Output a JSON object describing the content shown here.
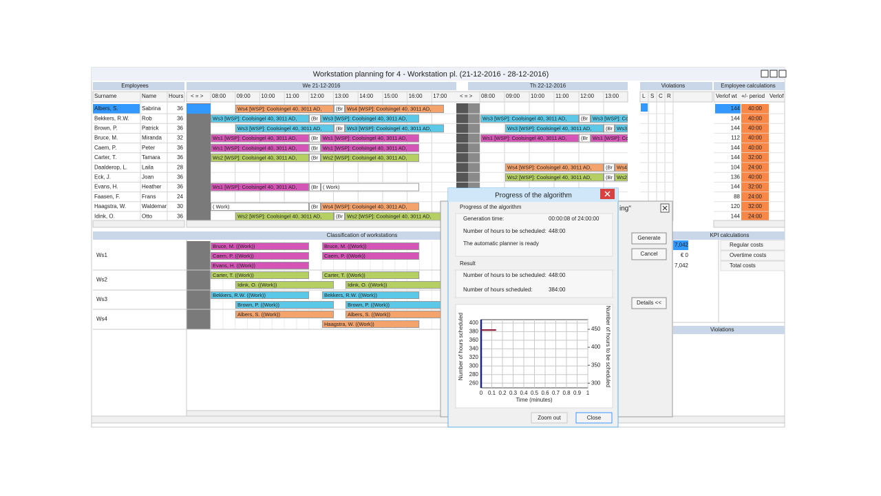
{
  "window": {
    "title": "Workstation planning for 4 - Workstation pl. (21-12-2016 - 28-12-2016)"
  },
  "employees": {
    "title": "Employees",
    "columns": [
      "Surname",
      "Name",
      "Hours"
    ],
    "rows": [
      {
        "surname": "Albers, S.",
        "name": "Sabrina",
        "hours": 36
      },
      {
        "surname": "Bekkers, R.W.",
        "name": "Rob",
        "hours": 36
      },
      {
        "surname": "Brown, P.",
        "name": "Patrick",
        "hours": 36
      },
      {
        "surname": "Bruce, M.",
        "name": "Miranda",
        "hours": 32
      },
      {
        "surname": "Caem, P.",
        "name": "Peter",
        "hours": 36
      },
      {
        "surname": "Carter, T.",
        "name": "Tamara",
        "hours": 36
      },
      {
        "surname": "Daalderop, L.",
        "name": "Laila",
        "hours": 28
      },
      {
        "surname": "Eck, J.",
        "name": "Joan",
        "hours": 36
      },
      {
        "surname": "Evans, H.",
        "name": "Heather",
        "hours": 36
      },
      {
        "surname": "Faasen, F.",
        "name": "Frans",
        "hours": 24
      },
      {
        "surname": "Haagstra, W.",
        "name": "Waldemar",
        "hours": 30
      },
      {
        "surname": "Idink, O.",
        "name": "Otto",
        "hours": 36
      }
    ]
  },
  "planning": {
    "nav": "< = >",
    "days": [
      {
        "label": "We 21-12-2016",
        "times": [
          "08:00",
          "09:00",
          "10:00",
          "11:00",
          "12:00",
          "13:00",
          "14:00",
          "15:00",
          "16:00",
          "17:00"
        ]
      },
      {
        "label": "Th 22-12-2016",
        "times": [
          "08:00",
          "09:00",
          "10:00",
          "11:00",
          "12:00",
          "13:00"
        ]
      }
    ],
    "rows": [
      {
        "day1": [
          {
            "text": "Ws4 [WSP]: Coolsingel 40, 3011 AD,",
            "color": "#f5a36c"
          },
          {
            "text": "(Br",
            "color": "#ffffff"
          },
          {
            "text": "Ws4 [WSP]: Coolsingel 40, 3011 AD,",
            "color": "#f5a36c"
          }
        ],
        "day2": []
      },
      {
        "day1": [
          {
            "text": "Ws3 [WSP]: Coolsingel 40, 3011 AD,",
            "color": "#5ac8e6"
          },
          {
            "text": "(Br",
            "color": "#ffffff"
          },
          {
            "text": "Ws3 [WSP]: Coolsingel 40, 3011 AD,",
            "color": "#5ac8e6"
          }
        ],
        "day2": [
          {
            "text": "Ws3 [WSP]: Coolsingel 40, 3011 AD,",
            "color": "#5ac8e6"
          },
          {
            "text": "(Br",
            "color": "#ffffff"
          },
          {
            "text": "Ws3 [WSP]: Co",
            "color": "#5ac8e6"
          }
        ]
      },
      {
        "day1": [
          {
            "text": "Ws3 [WSP]: Coolsingel 40, 3011 AD,",
            "color": "#5ac8e6"
          },
          {
            "text": "(Br",
            "color": "#ffffff"
          },
          {
            "text": "Ws3 [WSP]: Coolsingel 40, 3011 AD,",
            "color": "#5ac8e6"
          }
        ],
        "day2": [
          {
            "text": "Ws3 [WSP]: Coolsingel 40, 3011 AD,",
            "color": "#5ac8e6"
          },
          {
            "text": "(Br",
            "color": "#ffffff"
          },
          {
            "text": "Ws3",
            "color": "#5ac8e6"
          }
        ]
      },
      {
        "day1": [
          {
            "text": "Ws1 [WSP]: Coolsingel 40, 3011 AD,",
            "color": "#d455b5"
          },
          {
            "text": "(Br",
            "color": "#ffffff"
          },
          {
            "text": "Ws1 [WSP]: Coolsingel 40, 3011 AD,",
            "color": "#d455b5"
          }
        ],
        "day2": [
          {
            "text": "Ws1 [WSP]: Coolsingel 40, 3011 AD,",
            "color": "#d455b5"
          },
          {
            "text": "(Br",
            "color": "#ffffff"
          },
          {
            "text": "Ws1 [WSP]: Co",
            "color": "#d455b5"
          }
        ]
      },
      {
        "day1": [
          {
            "text": "Ws1 [WSP]: Coolsingel 40, 3011 AD,",
            "color": "#d455b5"
          },
          {
            "text": "(Br",
            "color": "#ffffff"
          },
          {
            "text": "Ws1 [WSP]: Coolsingel 40, 3011 AD,",
            "color": "#d455b5"
          }
        ],
        "day2": []
      },
      {
        "day1": [
          {
            "text": "Ws2 [WSP]: Coolsingel 40, 3011 AD,",
            "color": "#b5cf62"
          },
          {
            "text": "(Br",
            "color": "#ffffff"
          },
          {
            "text": "Ws2 [WSP]: Coolsingel 40, 3011 AD,",
            "color": "#b5cf62"
          }
        ],
        "day2": []
      },
      {
        "day1": [],
        "day2": [
          {
            "text": "Ws4 [WSP]: Coolsingel 40, 3011 AD,",
            "color": "#f5a36c"
          },
          {
            "text": "(Br",
            "color": "#ffffff"
          },
          {
            "text": "Ws4",
            "color": "#f5a36c"
          }
        ]
      },
      {
        "day1": [],
        "day2": [
          {
            "text": "Ws2 [WSP]: Coolsingel 40, 3011 AD,",
            "color": "#b5cf62"
          },
          {
            "text": "(Br",
            "color": "#ffffff"
          },
          {
            "text": "Ws2",
            "color": "#b5cf62"
          }
        ]
      },
      {
        "day1": [
          {
            "text": "Ws1 [WSP]: Coolsingel 40, 3011 AD,",
            "color": "#d455b5"
          },
          {
            "text": "(Br",
            "color": "#ffffff"
          },
          {
            "text": "( Work)",
            "color": "#ffffff"
          }
        ],
        "day2": []
      },
      {
        "day1": [],
        "day2": []
      },
      {
        "day1": [
          {
            "text": "( Work)",
            "color": "#ffffff"
          },
          {
            "text": "(Br",
            "color": "#ffffff"
          },
          {
            "text": "Ws4 [WSP]: Coolsingel 40, 3011 AD,",
            "color": "#f5a36c"
          }
        ],
        "day2": []
      },
      {
        "day1": [
          {
            "text": "Ws2 [WSP]: Coolsingel 40, 3011 AD,",
            "color": "#b5cf62"
          },
          {
            "text": "(Br",
            "color": "#ffffff"
          },
          {
            "text": "Ws2 [WSP]: Coolsingel 40, 3011 AD,",
            "color": "#b5cf62"
          }
        ],
        "day2": []
      }
    ]
  },
  "violations": {
    "title": "Violations",
    "columns": [
      "L",
      "S",
      "C",
      "R"
    ]
  },
  "employee_calculations": {
    "title": "Employee calculations",
    "columns": [
      "Verlof wt",
      "+/- period",
      "Verlof"
    ],
    "rows": [
      {
        "verlof": 144,
        "period": "40:00"
      },
      {
        "verlof": 144,
        "period": "40:00"
      },
      {
        "verlof": 144,
        "period": "40:00"
      },
      {
        "verlof": 112,
        "period": "40:00"
      },
      {
        "verlof": 144,
        "period": "40:00"
      },
      {
        "verlof": 144,
        "period": "32:00"
      },
      {
        "verlof": 104,
        "period": "24:00"
      },
      {
        "verlof": 136,
        "period": "40:00"
      },
      {
        "verlof": 144,
        "period": "32:00"
      },
      {
        "verlof": 88,
        "period": "24:00"
      },
      {
        "verlof": 120,
        "period": "32:00"
      },
      {
        "verlof": 144,
        "period": "24:00"
      }
    ]
  },
  "classification": {
    "title": "Classification of workstations",
    "rows": [
      {
        "label": "Ws1",
        "bars": [
          {
            "text": "Bruce, M. ((Work))",
            "color": "#d455b5"
          },
          {
            "text": "Bruce, M. ((Work))",
            "color": "#d455b5"
          },
          {
            "text": "Caem, P. ((Work))",
            "color": "#d455b5"
          },
          {
            "text": "Caem, P. ((Work))",
            "color": "#d455b5"
          },
          {
            "text": "Evans, H. ((Work))",
            "color": "#d455b5"
          }
        ]
      },
      {
        "label": "Ws2",
        "bars": [
          {
            "text": "Carter, T. ((Work))",
            "color": "#b5cf62"
          },
          {
            "text": "Carter, T. ((Work))",
            "color": "#b5cf62"
          },
          {
            "text": "Idink, O. ((Work))",
            "color": "#b5cf62"
          },
          {
            "text": "Idink, O. ((Work))",
            "color": "#b5cf62"
          }
        ]
      },
      {
        "label": "Ws3",
        "bars": [
          {
            "text": "Bekkers, R.W. ((Work))",
            "color": "#5ac8e6"
          },
          {
            "text": "Bekkers, R.W. ((Work))",
            "color": "#5ac8e6"
          },
          {
            "text": "Brown, P. ((Work))",
            "color": "#5ac8e6"
          },
          {
            "text": "Brown, P. ((Work))",
            "color": "#5ac8e6"
          }
        ]
      },
      {
        "label": "Ws4",
        "bars": [
          {
            "text": "Albers, S. ((Work))",
            "color": "#f5a36c"
          },
          {
            "text": "Albers, S. ((Work))",
            "color": "#f5a36c"
          },
          {
            "text": "Haagstra, W. ((Work))",
            "color": "#f5a36c"
          }
        ]
      }
    ]
  },
  "kpi": {
    "title": "KPI calculations",
    "items": [
      "Regular costs",
      "Overtime costs",
      "Total costs"
    ],
    "values": [
      "7,042",
      "€ 0",
      "7,042"
    ]
  },
  "violations_lower": {
    "title": "Violations"
  },
  "planner_dialog": {
    "title_fragment": "ing\"",
    "buttons": [
      "Generate",
      "Cancel",
      "Details <<"
    ]
  },
  "progress_dialog": {
    "title": "Progress of the algorithm",
    "group1": "Progress of the algorithm",
    "rows": [
      {
        "label": "Generation time:",
        "value": "00:00:08 of 24:00:00"
      },
      {
        "label": "Number of hours to be scheduled:",
        "value": "448:00"
      }
    ],
    "status": "The automatic planner is ready",
    "group2": "Result",
    "result_rows": [
      {
        "label": "Number of hours to be scheduled:",
        "value": "448:00"
      },
      {
        "label": "Number of hours scheduled:",
        "value": "384:00"
      }
    ],
    "buttons": [
      "Zoom out",
      "Close"
    ]
  },
  "chart_data": {
    "type": "line",
    "xlabel": "Time (minutes)",
    "ylabel": "Number of hours scheduled",
    "y2label": "Number of hours to be scheduled",
    "x": [
      0,
      0.14
    ],
    "xlim": [
      0,
      1
    ],
    "xticks": [
      0,
      0.1,
      0.2,
      0.3,
      0.4,
      0.5,
      0.6,
      0.7,
      0.8,
      0.9,
      1
    ],
    "ylim": [
      249,
      408
    ],
    "yticks": [
      260,
      280,
      300,
      320,
      340,
      360,
      380,
      400
    ],
    "y2lim": [
      287,
      477
    ],
    "y2ticks": [
      300,
      350,
      400,
      450
    ],
    "grid": true,
    "series": [
      {
        "color": "#8b1c3c",
        "values": [
          384,
          384
        ]
      },
      {
        "color": "#c0392b",
        "values": [
          448,
          448
        ],
        "axis": "y2"
      }
    ]
  }
}
